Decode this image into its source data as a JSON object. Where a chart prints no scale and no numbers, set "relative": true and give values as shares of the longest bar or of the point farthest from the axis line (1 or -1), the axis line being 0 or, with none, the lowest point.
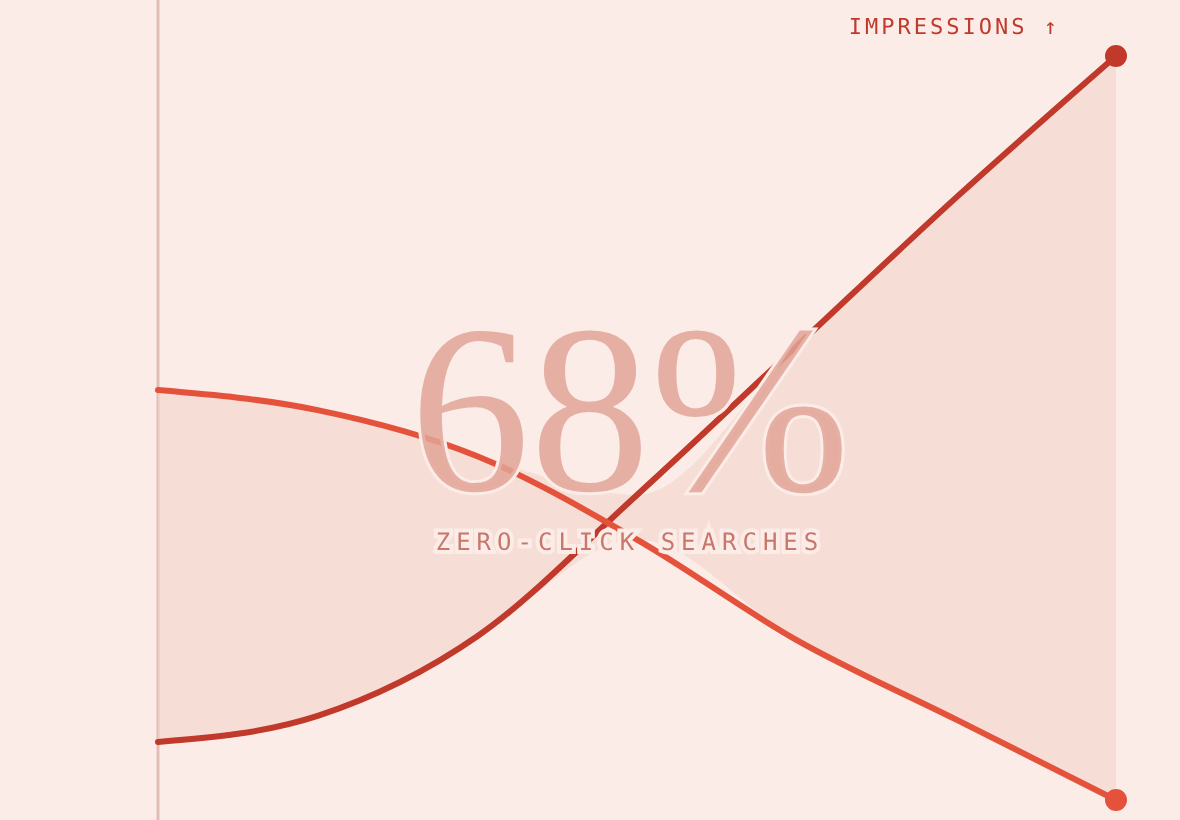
{
  "chart_data": {
    "type": "line",
    "relative": true,
    "categories": [
      null,
      null,
      null,
      null,
      null,
      null,
      null
    ],
    "series": [
      {
        "name": "IMPRESSIONS ↑",
        "color": "#c0392b",
        "values": [
          0.078,
          0.113,
          0.22,
          0.41,
          0.61,
          0.81,
          1
        ]
      },
      {
        "color": "#e4523b",
        "values": [
          0.551,
          0.524,
          0.462,
          0.35,
          0.215,
          0.108,
          0
        ]
      }
    ],
    "annotations": [
      "68%",
      "ZERO-CLICK SEARCHES"
    ]
  }
}
